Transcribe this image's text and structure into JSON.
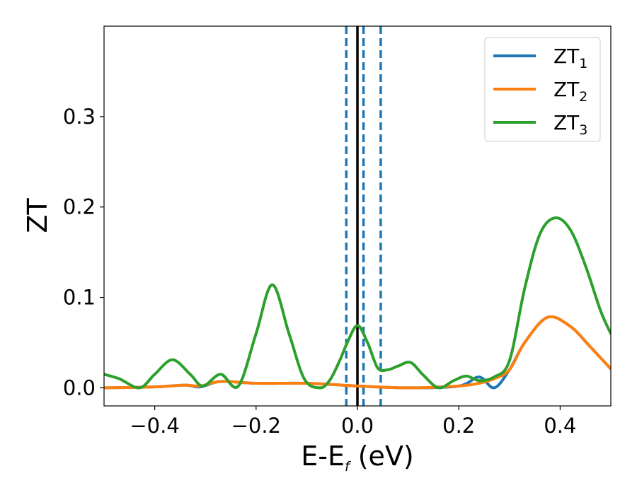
{
  "chart_data": {
    "type": "line",
    "xlabel_main": "E-E",
    "xlabel_sub": "f",
    "xlabel_unit": " (eV)",
    "ylabel": "ZT",
    "xlim": [
      -0.5,
      0.5
    ],
    "ylim": [
      -0.02,
      0.4
    ],
    "xticks": [
      -0.4,
      -0.2,
      0.0,
      0.2,
      0.4
    ],
    "xtick_labels": [
      "−0.4",
      "−0.2",
      "0.0",
      "0.2",
      "0.4"
    ],
    "yticks": [
      0.0,
      0.1,
      0.2,
      0.3
    ],
    "ytick_labels": [
      "0.0",
      "0.1",
      "0.2",
      "0.3"
    ],
    "grid": false,
    "legend_position": "top-right",
    "vertical_lines": [
      {
        "x": 0.0,
        "style": "solid",
        "color": "#000000"
      },
      {
        "x": -0.022,
        "style": "dashed",
        "color": "#1f77b4"
      },
      {
        "x": 0.012,
        "style": "dashed",
        "color": "#1f77b4"
      },
      {
        "x": 0.046,
        "style": "dashed",
        "color": "#1f77b4"
      }
    ],
    "series": [
      {
        "name_main": "ZT",
        "name_sub": "1",
        "color": "#1f77b4",
        "x": [
          -0.5,
          -0.4,
          -0.34,
          -0.31,
          -0.27,
          -0.2,
          -0.1,
          0.0,
          0.1,
          0.2,
          0.24,
          0.27,
          0.3,
          0.33,
          0.375,
          0.42,
          0.46,
          0.5
        ],
        "y": [
          0.0,
          0.001,
          0.003,
          0.001,
          0.007,
          0.005,
          0.005,
          0.002,
          0.0,
          0.002,
          0.012,
          0.0,
          0.02,
          0.05,
          0.078,
          0.068,
          0.045,
          0.021
        ]
      },
      {
        "name_main": "ZT",
        "name_sub": "2",
        "color": "#ff7f0e",
        "x": [
          -0.5,
          -0.4,
          -0.34,
          -0.31,
          -0.27,
          -0.2,
          -0.1,
          0.0,
          0.1,
          0.2,
          0.24,
          0.27,
          0.3,
          0.33,
          0.375,
          0.42,
          0.46,
          0.5
        ],
        "y": [
          0.0,
          0.001,
          0.003,
          0.002,
          0.007,
          0.005,
          0.005,
          0.002,
          0.0,
          0.002,
          0.005,
          0.01,
          0.02,
          0.05,
          0.078,
          0.068,
          0.045,
          0.021
        ]
      },
      {
        "name_main": "ZT",
        "name_sub": "3",
        "color": "#2ca02c",
        "x": [
          -0.5,
          -0.47,
          -0.43,
          -0.4,
          -0.365,
          -0.33,
          -0.305,
          -0.27,
          -0.235,
          -0.2,
          -0.168,
          -0.135,
          -0.105,
          -0.075,
          -0.055,
          -0.035,
          -0.02,
          0.0,
          0.02,
          0.04,
          0.06,
          0.08,
          0.105,
          0.13,
          0.16,
          0.19,
          0.215,
          0.24,
          0.27,
          0.3,
          0.33,
          0.36,
          0.39,
          0.42,
          0.45,
          0.48,
          0.5
        ],
        "y": [
          0.015,
          0.01,
          0.0,
          0.015,
          0.031,
          0.015,
          0.002,
          0.015,
          0.002,
          0.06,
          0.114,
          0.06,
          0.01,
          0.0,
          0.008,
          0.03,
          0.05,
          0.069,
          0.05,
          0.022,
          0.02,
          0.024,
          0.028,
          0.014,
          0.0,
          0.008,
          0.013,
          0.008,
          0.012,
          0.03,
          0.11,
          0.17,
          0.188,
          0.175,
          0.135,
          0.085,
          0.06
        ]
      }
    ]
  }
}
